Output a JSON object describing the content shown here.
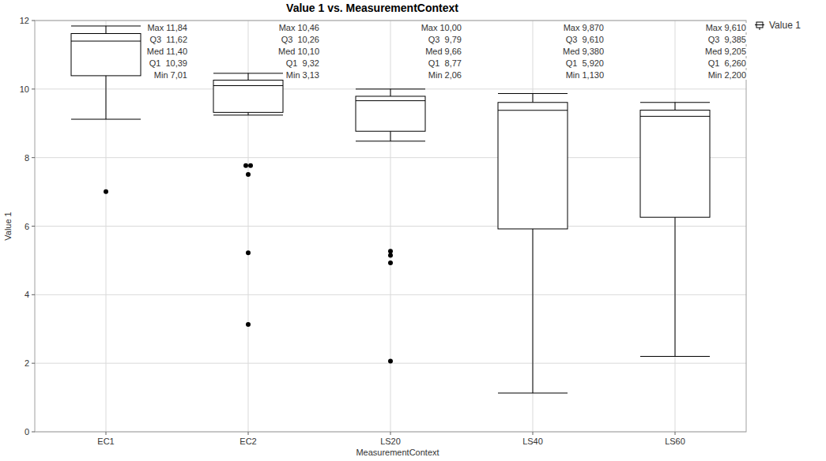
{
  "chart_data": {
    "type": "box",
    "title": "Value 1 vs. MeasurementContext",
    "x_label": "MeasurementContext",
    "y_label": "Value 1",
    "categories": [
      "EC1",
      "EC2",
      "LS20",
      "LS40",
      "LS60"
    ],
    "ylim": [
      0,
      12
    ],
    "yticks": [
      0,
      2,
      4,
      6,
      8,
      10,
      12
    ],
    "grid": true,
    "legend": "top-right",
    "series": [
      {
        "name": "Value 1",
        "color": "#000000",
        "whisker_low": [
          9.12,
          9.24,
          8.48,
          1.13,
          2.2
        ],
        "q1": [
          10.39,
          9.32,
          8.77,
          5.92,
          6.26
        ],
        "median": [
          11.4,
          10.1,
          9.66,
          9.38,
          9.205
        ],
        "q3": [
          11.62,
          10.26,
          9.79,
          9.61,
          9.385
        ],
        "whisker_high": [
          11.84,
          10.46,
          10.0,
          9.87,
          9.61
        ],
        "outliers": [
          [
            7.01
          ],
          [
            7.77,
            7.77,
            7.51,
            5.22,
            3.13
          ],
          [
            5.27,
            5.15,
            4.93,
            2.06
          ],
          [],
          []
        ],
        "stat_labels": [
          [
            "Max 11,84",
            "Q3  11,62",
            "Med 11,40",
            "Q1  10,39",
            "Min 7,01"
          ],
          [
            "Max 10,46",
            "Q3  10,26",
            "Med 10,10",
            "Q1  9,32",
            "Min 3,13"
          ],
          [
            "Max 10,00",
            "Q3  9,79",
            "Med 9,66",
            "Q1  8,77",
            "Min 2,06"
          ],
          [
            "Max 9,870",
            "Q3  9,610",
            "Med 9,380",
            "Q1  5,920",
            "Min 1,130"
          ],
          [
            "Max 9,610",
            "Q3  9,385",
            "Med 9,205",
            "Q1  6,260",
            "Min 2,200"
          ]
        ]
      }
    ]
  }
}
